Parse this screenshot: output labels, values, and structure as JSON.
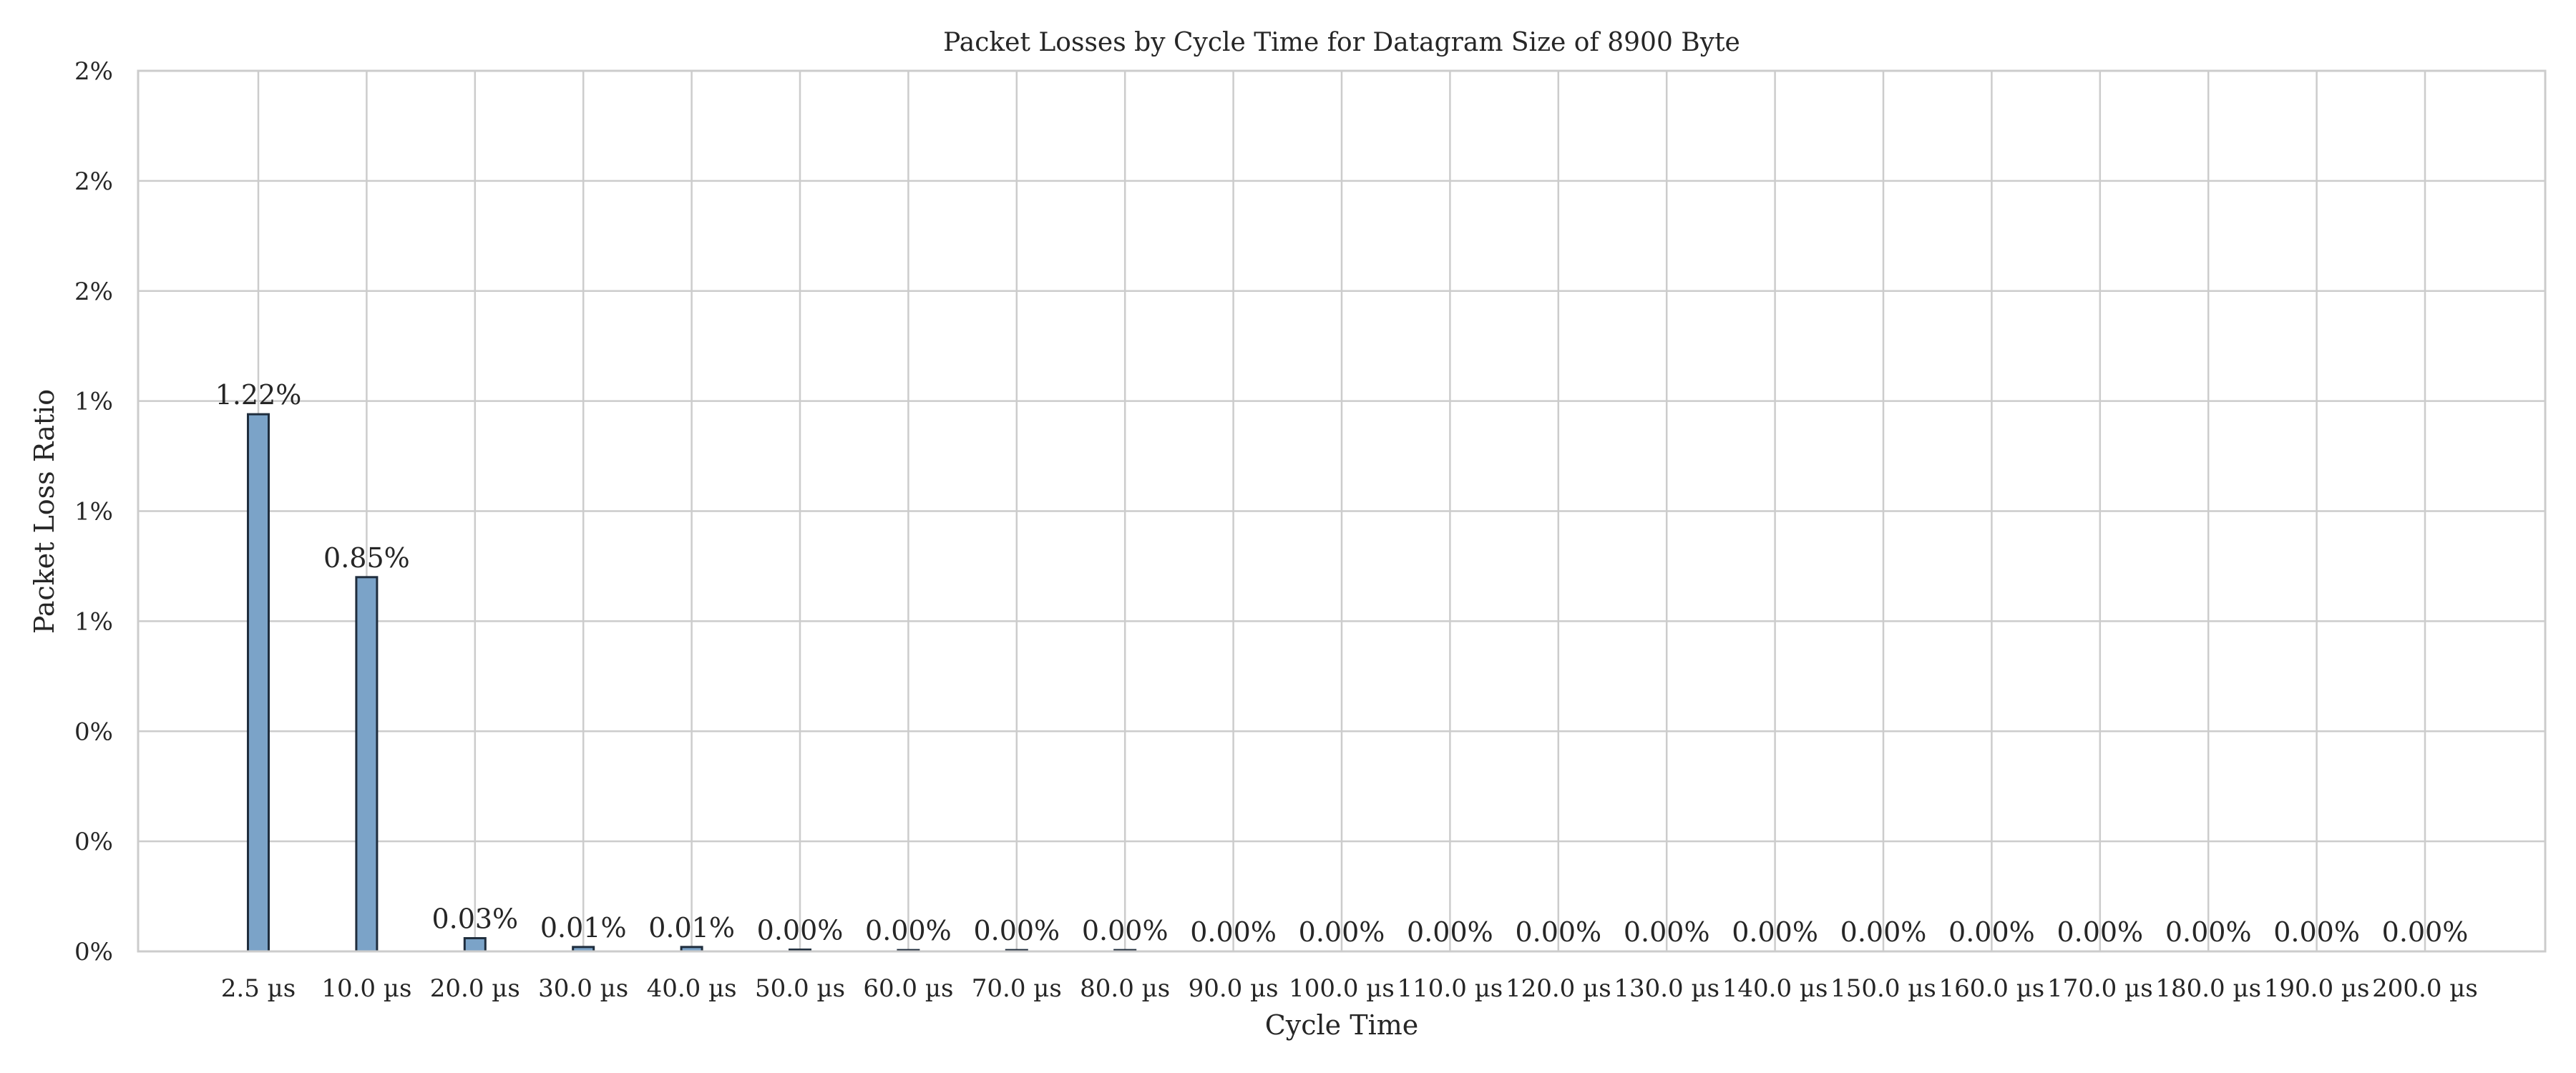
{
  "chart_data": {
    "type": "bar",
    "title": "Packet Losses by Cycle Time for Datagram Size of 8900 Byte",
    "xlabel": "Cycle Time",
    "ylabel": "Packet Loss Ratio",
    "categories": [
      "2.5 µs",
      "10.0 µs",
      "20.0 µs",
      "30.0 µs",
      "40.0 µs",
      "50.0 µs",
      "60.0 µs",
      "70.0 µs",
      "80.0 µs",
      "90.0 µs",
      "100.0 µs",
      "110.0 µs",
      "120.0 µs",
      "130.0 µs",
      "140.0 µs",
      "150.0 µs",
      "160.0 µs",
      "170.0 µs",
      "180.0 µs",
      "190.0 µs",
      "200.0 µs"
    ],
    "values": [
      1.22,
      0.85,
      0.03,
      0.01,
      0.01,
      0.004,
      0.003,
      0.003,
      0.003,
      0.0,
      0.0,
      0.0,
      0.0,
      0.0,
      0.0,
      0.0,
      0.0,
      0.0,
      0.0,
      0.0,
      0.0
    ],
    "data_labels": [
      "1.22%",
      "0.85%",
      "0.03%",
      "0.01%",
      "0.01%",
      "0.00%",
      "0.00%",
      "0.00%",
      "0.00%",
      "0.00%",
      "0.00%",
      "0.00%",
      "0.00%",
      "0.00%",
      "0.00%",
      "0.00%",
      "0.00%",
      "0.00%",
      "0.00%",
      "0.00%",
      "0.00%"
    ],
    "ylim": [
      0,
      2.0
    ],
    "yticks": [
      0,
      0.25,
      0.5,
      0.75,
      1.0,
      1.25,
      1.5,
      1.75,
      2.0
    ],
    "ytick_labels": [
      "0%",
      "0%",
      "0%",
      "1%",
      "1%",
      "1%",
      "2%",
      "2%",
      "2%"
    ],
    "grid": true,
    "bar_color": "#7ba3c8",
    "bar_edge_color": "#1f2d3d"
  }
}
